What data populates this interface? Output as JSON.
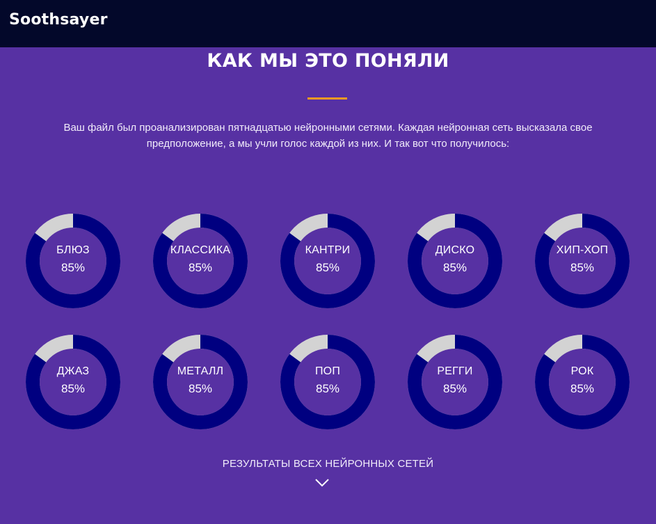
{
  "header": {
    "brand": "Soothsayer"
  },
  "section": {
    "title": "КАК МЫ ЭТО ПОНЯЛИ",
    "intro_line1": "Ваш файл был проанализирован пятнадцатью нейронными сетями. Каждая нейронная сеть высказала свое",
    "intro_line2": "предположение, а мы учли голос каждой из них. И так вот что получилось:"
  },
  "colors": {
    "background": "#5731a3",
    "header": "#03082a",
    "accent": "#f59a23",
    "ring_fill": "#000080",
    "ring_rest": "#d3d3d3"
  },
  "genres": [
    {
      "name": "БЛЮЗ",
      "percent_label": "85%",
      "value": 85
    },
    {
      "name": "КЛАССИКА",
      "percent_label": "85%",
      "value": 85
    },
    {
      "name": "КАНТРИ",
      "percent_label": "85%",
      "value": 85
    },
    {
      "name": "ДИСКО",
      "percent_label": "85%",
      "value": 85
    },
    {
      "name": "ХИП-ХОП",
      "percent_label": "85%",
      "value": 85
    },
    {
      "name": "ДЖАЗ",
      "percent_label": "85%",
      "value": 85
    },
    {
      "name": "МЕТАЛЛ",
      "percent_label": "85%",
      "value": 85
    },
    {
      "name": "ПОП",
      "percent_label": "85%",
      "value": 85
    },
    {
      "name": "РЕГГИ",
      "percent_label": "85%",
      "value": 85
    },
    {
      "name": "РОК",
      "percent_label": "85%",
      "value": 85
    }
  ],
  "footer": {
    "all_results_label": "РЕЗУЛЬТАТЫ ВСЕХ НЕЙРОННЫХ СЕТЕЙ",
    "expand_icon": "chevron-down-icon"
  }
}
